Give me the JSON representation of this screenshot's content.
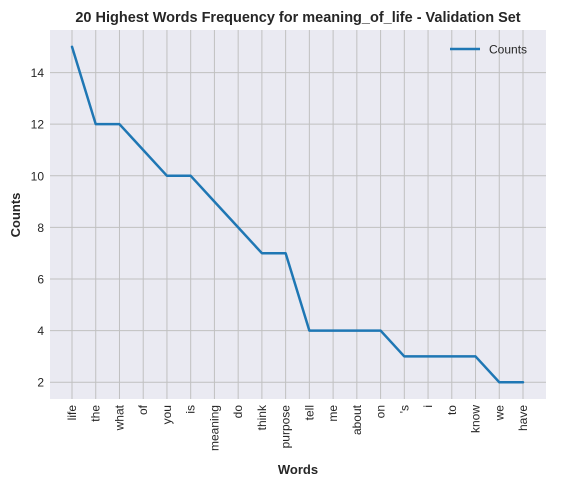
{
  "chart_data": {
    "type": "line",
    "title": "20 Highest Words Frequency for meaning_of_life - Validation Set",
    "xlabel": "Words",
    "ylabel": "Counts",
    "categories": [
      "life",
      "the",
      "what",
      "of",
      "you",
      "is",
      "meaning",
      "do",
      "think",
      "purpose",
      "tell",
      "me",
      "about",
      "on",
      "'s",
      "i",
      "to",
      "know",
      "we",
      "have"
    ],
    "series": [
      {
        "name": "Counts",
        "values": [
          15,
          12,
          12,
          11,
          10,
          10,
          9,
          8,
          7,
          7,
          4,
          4,
          4,
          4,
          3,
          3,
          3,
          3,
          2,
          2
        ]
      }
    ],
    "ylim": [
      1.35,
      15.65
    ],
    "yticks": [
      2,
      4,
      6,
      8,
      10,
      12,
      14
    ],
    "grid": true,
    "legend_position": "top-right",
    "colors": {
      "line": "#1f77b4",
      "plot_background": "#eaeaf2",
      "grid": "#c0c0c0"
    }
  }
}
